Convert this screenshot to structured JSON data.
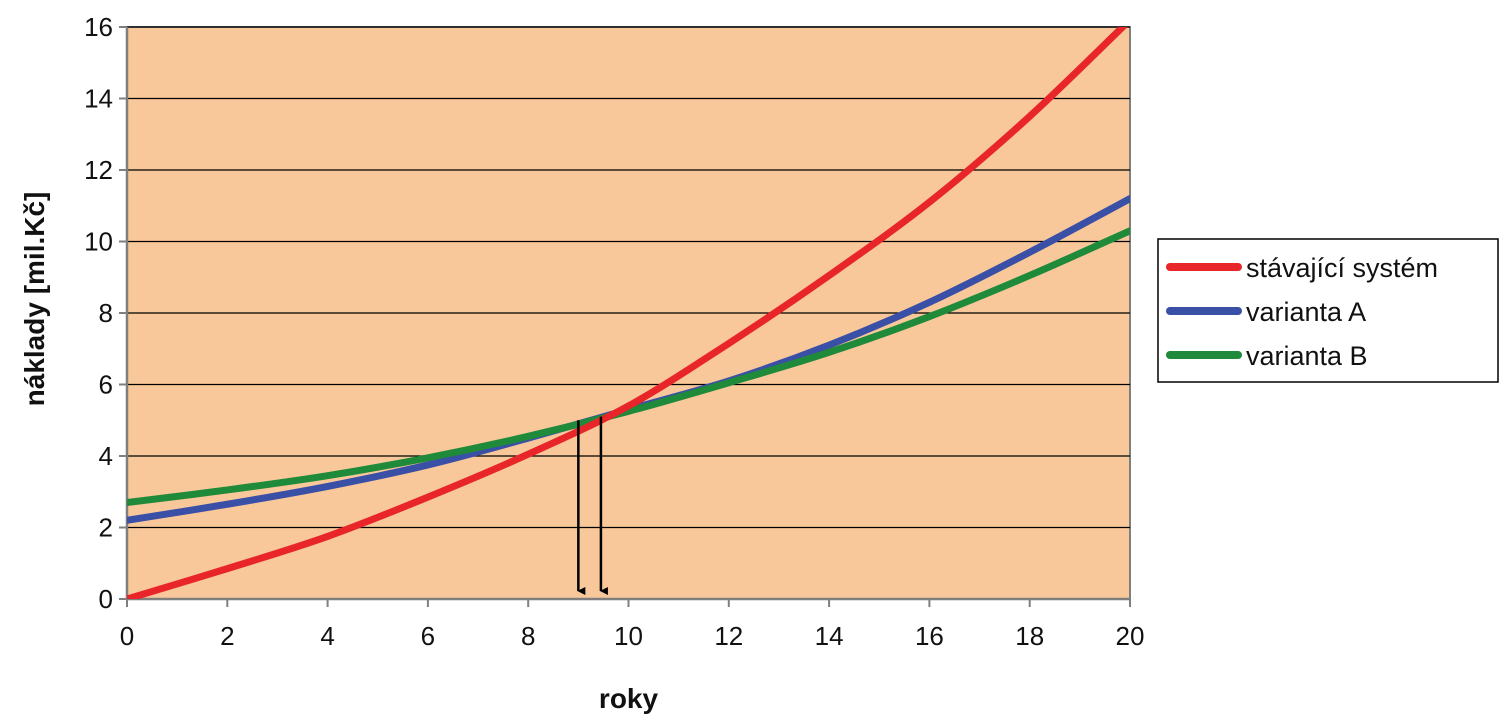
{
  "chart_data": {
    "type": "line",
    "title": "",
    "xlabel": "roky",
    "ylabel": "náklady [mil.Kč]",
    "xlim": [
      0,
      20
    ],
    "ylim": [
      0,
      16
    ],
    "x_ticks": [
      0,
      2,
      4,
      6,
      8,
      10,
      12,
      14,
      16,
      18,
      20
    ],
    "y_ticks": [
      0,
      2,
      4,
      6,
      8,
      10,
      12,
      14,
      16
    ],
    "grid": "horizontal",
    "legend_position": "right",
    "plot_background": "#f9c89a",
    "x": [
      0,
      2,
      4,
      6,
      8,
      10,
      12,
      14,
      16,
      18,
      20
    ],
    "series": [
      {
        "name": "stávající systém",
        "color": "#e8262a",
        "values": [
          0.0,
          0.85,
          1.75,
          2.85,
          4.05,
          5.4,
          7.15,
          9.05,
          11.1,
          13.5,
          16.2
        ]
      },
      {
        "name": "varianta A",
        "color": "#3a4fa6",
        "values": [
          2.2,
          2.65,
          3.15,
          3.75,
          4.5,
          5.3,
          6.1,
          7.1,
          8.3,
          9.7,
          11.2
        ]
      },
      {
        "name": "varianta B",
        "color": "#1f8a3a",
        "values": [
          2.7,
          3.05,
          3.45,
          3.95,
          4.55,
          5.25,
          6.05,
          6.9,
          7.9,
          9.05,
          10.3
        ]
      }
    ],
    "annotations": [
      {
        "type": "arrow",
        "x": 9.0,
        "y_from": 5.0,
        "y_to": 0
      },
      {
        "type": "arrow",
        "x": 9.45,
        "y_from": 5.1,
        "y_to": 0
      }
    ]
  }
}
